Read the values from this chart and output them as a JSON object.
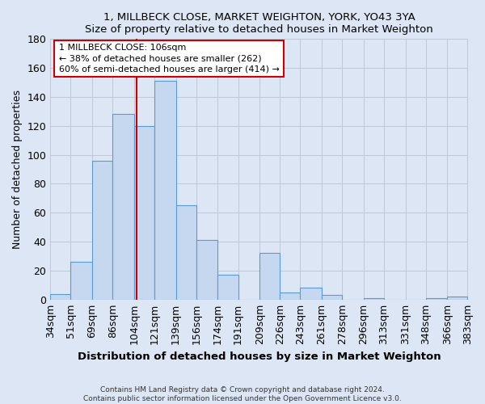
{
  "title": "1, MILLBECK CLOSE, MARKET WEIGHTON, YORK, YO43 3YA",
  "subtitle": "Size of property relative to detached houses in Market Weighton",
  "xlabel": "Distribution of detached houses by size in Market Weighton",
  "ylabel": "Number of detached properties",
  "bin_edges": [
    34,
    51,
    69,
    86,
    104,
    121,
    139,
    156,
    174,
    191,
    209,
    226,
    243,
    261,
    278,
    296,
    313,
    331,
    348,
    366,
    383
  ],
  "bar_heights": [
    4,
    26,
    96,
    128,
    120,
    151,
    65,
    41,
    17,
    0,
    32,
    5,
    8,
    3,
    0,
    1,
    0,
    0,
    1,
    2
  ],
  "bar_color": "#c5d8f0",
  "bar_edge_color": "#5b9bd5",
  "tick_labels": [
    "34sqm",
    "51sqm",
    "69sqm",
    "86sqm",
    "104sqm",
    "121sqm",
    "139sqm",
    "156sqm",
    "174sqm",
    "191sqm",
    "209sqm",
    "226sqm",
    "243sqm",
    "261sqm",
    "278sqm",
    "296sqm",
    "313sqm",
    "331sqm",
    "348sqm",
    "366sqm",
    "383sqm"
  ],
  "vline_x": 106,
  "vline_color": "#cc0000",
  "annotation_line1": "1 MILLBECK CLOSE: 106sqm",
  "annotation_line2": "← 38% of detached houses are smaller (262)",
  "annotation_line3": "60% of semi-detached houses are larger (414) →",
  "annotation_box_color": "#cc0000",
  "ylim": [
    0,
    180
  ],
  "yticks": [
    0,
    20,
    40,
    60,
    80,
    100,
    120,
    140,
    160,
    180
  ],
  "grid_color": "#c0c8d8",
  "background_color": "#dce6f5",
  "footer1": "Contains HM Land Registry data © Crown copyright and database right 2024.",
  "footer2": "Contains public sector information licensed under the Open Government Licence v3.0."
}
